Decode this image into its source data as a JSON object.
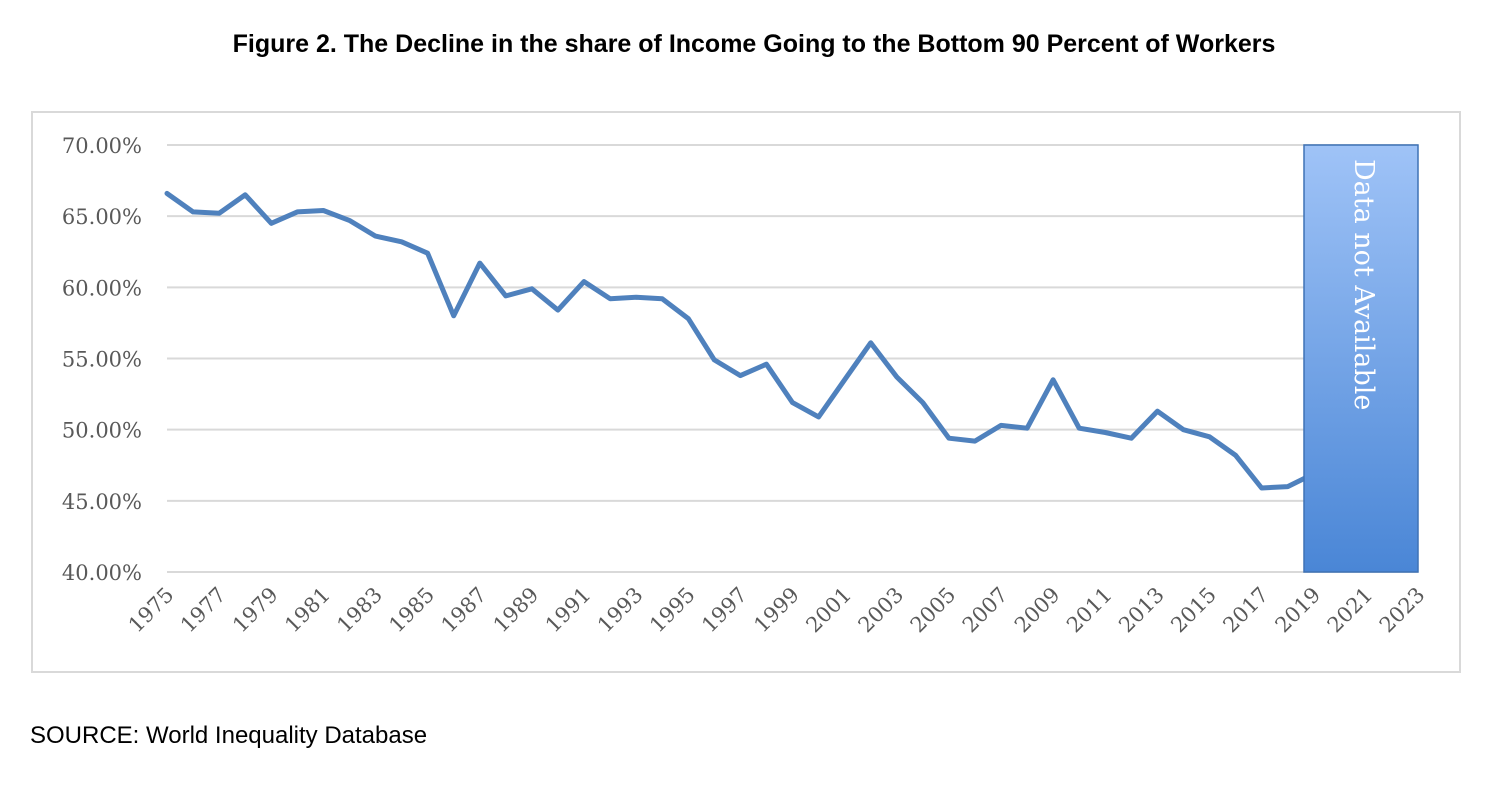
{
  "title": "Figure 2. The Decline in the share of Income Going to the Bottom 90 Percent of Workers",
  "source": "SOURCE: World Inequality Database",
  "chart_data": {
    "type": "line",
    "title": "Figure 2. The Decline in the share of Income Going to the Bottom 90 Percent of Workers",
    "xlabel": "",
    "ylabel": "",
    "ylim": [
      0.4,
      0.7
    ],
    "y_ticks": [
      "40.00%",
      "45.00%",
      "50.00%",
      "55.00%",
      "60.00%",
      "65.00%",
      "70.00%"
    ],
    "x_tick_labels": [
      "1975",
      "1977",
      "1979",
      "1981",
      "1983",
      "1985",
      "1987",
      "1989",
      "1991",
      "1993",
      "1995",
      "1997",
      "1999",
      "2001",
      "2003",
      "2005",
      "2007",
      "2009",
      "2011",
      "2013",
      "2015",
      "2017",
      "2019",
      "2021",
      "2023"
    ],
    "grid": true,
    "legend": "none",
    "line_color": "#4f81bd",
    "x": [
      1975,
      1976,
      1977,
      1978,
      1979,
      1980,
      1981,
      1982,
      1983,
      1984,
      1985,
      1986,
      1987,
      1988,
      1989,
      1990,
      1991,
      1992,
      1993,
      1994,
      1995,
      1996,
      1997,
      1998,
      1999,
      2000,
      2001,
      2002,
      2003,
      2004,
      2005,
      2006,
      2007,
      2008,
      2009,
      2010,
      2011,
      2012,
      2013,
      2014,
      2015,
      2016,
      2017,
      2018,
      2019
    ],
    "series": [
      {
        "values": [
          0.666,
          0.653,
          0.652,
          0.665,
          0.645,
          0.653,
          0.654,
          0.647,
          0.636,
          0.632,
          0.624,
          0.58,
          0.617,
          0.594,
          0.599,
          0.584,
          0.604,
          0.592,
          0.593,
          0.592,
          0.578,
          0.549,
          0.538,
          0.546,
          0.519,
          0.509,
          0.535,
          0.561,
          0.537,
          0.519,
          0.494,
          0.492,
          0.503,
          0.501,
          0.535,
          0.501,
          0.498,
          0.494,
          0.513,
          0.5,
          0.495,
          0.482,
          0.459,
          0.46,
          0.469
        ]
      }
    ],
    "annotation": {
      "text": "Data not Available",
      "x_start": 2020,
      "x_end": 2023,
      "fill_top": "#9fc3f7",
      "fill_bottom": "#4a86d6",
      "border": "#3f72b5"
    }
  }
}
